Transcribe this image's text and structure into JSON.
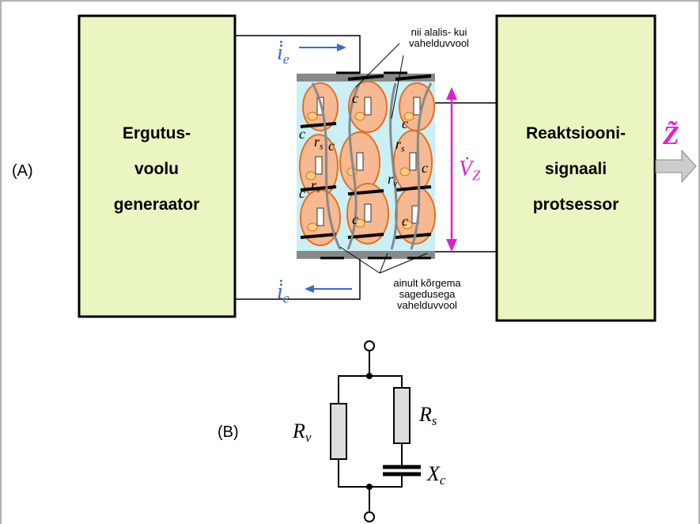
{
  "panel_a": {
    "label": "(A)",
    "generator": [
      "Ergutus-",
      "voolu",
      "generaator"
    ],
    "processor": [
      "Reaktsiooni-",
      "signaali",
      "protsessor"
    ],
    "output": "Z̃",
    "current_top": {
      "main": "i̇",
      "sub": "e"
    },
    "current_bottom": {
      "main": "i̇",
      "sub": "e"
    },
    "voltage": {
      "main": "V̇",
      "sub": "Z"
    },
    "note_top": [
      "nii alalis- kui",
      "vahelduvvool"
    ],
    "note_bottom": [
      "ainult kõrgema",
      "sagedusega",
      "vahelduvvool"
    ],
    "cell_labels": [
      {
        "main": "c"
      },
      {
        "main": "c"
      },
      {
        "main": "c"
      },
      {
        "main": "c"
      },
      {
        "main": "c"
      },
      {
        "main": "c"
      },
      {
        "main": "c"
      },
      {
        "main": "c"
      },
      {
        "main": "r",
        "sub": "v"
      },
      {
        "main": "r",
        "sub": "s"
      },
      {
        "main": "r",
        "sub": "v"
      },
      {
        "main": "r",
        "sub": "s"
      }
    ]
  },
  "panel_b": {
    "label": "(B)",
    "rv": {
      "main": "R",
      "sub": "v"
    },
    "rs": {
      "main": "R",
      "sub": "s"
    },
    "xc": {
      "main": "X",
      "sub": "c"
    }
  }
}
